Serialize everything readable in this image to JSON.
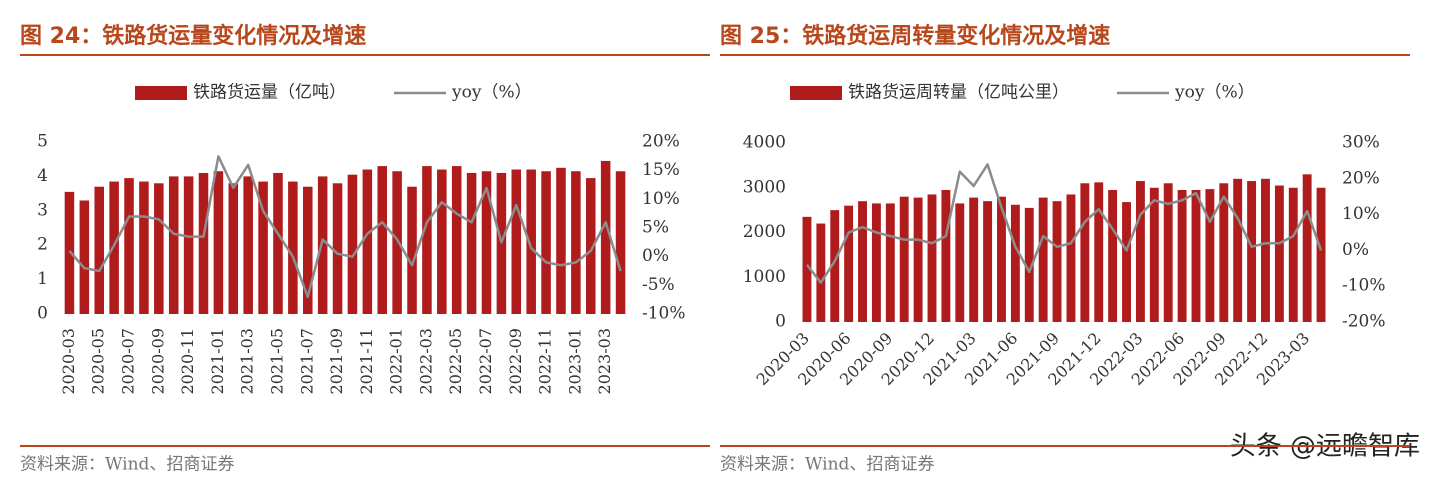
{
  "chart_data": [
    {
      "type": "bar",
      "title": "图 24：铁路货运量变化情况及增速",
      "source": "资料来源：Wind、招商证券",
      "categories": [
        "2020-03",
        null,
        "2020-05",
        null,
        "2020-07",
        null,
        "2020-09",
        null,
        "2020-11",
        null,
        "2021-01",
        null,
        "2021-03",
        null,
        "2021-05",
        null,
        "2021-07",
        null,
        "2021-09",
        null,
        "2021-11",
        null,
        "2022-01",
        null,
        "2022-03",
        null,
        "2022-05",
        null,
        "2022-07",
        null,
        "2022-09",
        null,
        "2022-11",
        null,
        "2023-01",
        null,
        "2023-03",
        null
      ],
      "series": [
        {
          "name": "铁路货运量（亿吨）",
          "type": "bar",
          "color": "#b01c1c",
          "values": [
            3.55,
            3.3,
            3.7,
            3.85,
            3.95,
            3.85,
            3.8,
            4.0,
            4.0,
            4.1,
            4.15,
            3.8,
            4.0,
            3.85,
            4.1,
            3.85,
            3.7,
            4.0,
            3.8,
            4.05,
            4.2,
            4.3,
            4.15,
            3.7,
            4.3,
            4.2,
            4.3,
            4.1,
            4.15,
            4.1,
            4.2,
            4.2,
            4.15,
            4.25,
            4.15,
            3.95,
            4.45,
            4.15
          ]
        },
        {
          "name": "yoy（%）",
          "type": "line",
          "axis": "y2",
          "color": "#8c8c8c",
          "values": [
            1,
            -2,
            -2.5,
            2,
            7,
            7,
            6.5,
            4,
            3.5,
            3.5,
            17.5,
            12,
            16,
            8,
            4,
            0,
            -7,
            3,
            0.5,
            0,
            4,
            6,
            3,
            -1.5,
            6,
            9.5,
            7.5,
            6,
            12,
            2.5,
            9,
            1.5,
            -1,
            -1.5,
            -1,
            1,
            6,
            -2.5
          ]
        }
      ],
      "ylim": [
        0,
        5
      ],
      "yticks": [
        0,
        1,
        2,
        3,
        4,
        5
      ],
      "y2lim": [
        -10,
        20
      ],
      "y2ticks": [
        {
          "value": -10,
          "label": "-10%"
        },
        {
          "value": -5,
          "label": "-5%"
        },
        {
          "value": 0,
          "label": "0%"
        },
        {
          "value": 5,
          "label": "5%"
        },
        {
          "value": 10,
          "label": "10%"
        },
        {
          "value": 15,
          "label": "15%"
        },
        {
          "value": 20,
          "label": "20%"
        }
      ],
      "legend": "top",
      "label_rotation": -90
    },
    {
      "type": "bar",
      "title": "图 25：铁路货运周转量变化情况及增速",
      "source": "资料来源：Wind、招商证券",
      "categories": [
        "2020-03",
        null,
        null,
        "2020-06",
        null,
        null,
        "2020-09",
        null,
        null,
        "2020-12",
        null,
        null,
        "2021-03",
        null,
        null,
        "2021-06",
        null,
        null,
        "2021-09",
        null,
        null,
        "2021-12",
        null,
        null,
        "2022-03",
        null,
        null,
        "2022-06",
        null,
        null,
        "2022-09",
        null,
        null,
        "2022-12",
        null,
        null,
        "2023-03",
        null
      ],
      "series": [
        {
          "name": "铁路货运周转量（亿吨公里）",
          "type": "bar",
          "color": "#b01c1c",
          "values": [
            2350,
            2200,
            2500,
            2600,
            2700,
            2650,
            2650,
            2800,
            2780,
            2850,
            2950,
            2650,
            2780,
            2700,
            2800,
            2620,
            2550,
            2780,
            2700,
            2850,
            3100,
            3120,
            2950,
            2680,
            3150,
            3000,
            3100,
            2950,
            2950,
            2970,
            3100,
            3200,
            3150,
            3200,
            3050,
            3000,
            3300,
            3000
          ]
        },
        {
          "name": "yoy（%）",
          "type": "line",
          "axis": "y2",
          "color": "#8c8c8c",
          "values": [
            -4,
            -9,
            -3,
            5,
            6.5,
            5,
            4,
            3,
            3,
            2,
            4,
            22,
            18,
            24,
            12,
            1,
            -6,
            4,
            1,
            2,
            8,
            11.5,
            6,
            0,
            10,
            14,
            13,
            14,
            16,
            8,
            15,
            9,
            1,
            2,
            2,
            4,
            11,
            0
          ]
        }
      ],
      "ylim": [
        0,
        4000
      ],
      "yticks": [
        0,
        1000,
        2000,
        3000,
        4000
      ],
      "y2lim": [
        -20,
        30
      ],
      "y2ticks": [
        {
          "value": -20,
          "label": "-20%"
        },
        {
          "value": -10,
          "label": "-10%"
        },
        {
          "value": 0,
          "label": "0%"
        },
        {
          "value": 10,
          "label": "10%"
        },
        {
          "value": 20,
          "label": "20%"
        },
        {
          "value": 30,
          "label": "30%"
        }
      ],
      "legend": "top",
      "label_rotation": -45
    }
  ],
  "watermark": "头条 @远瞻智库"
}
